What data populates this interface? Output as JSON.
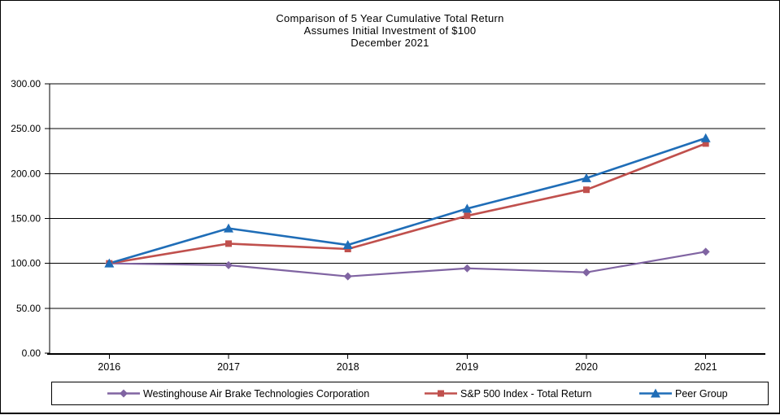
{
  "title": {
    "line1": "Comparison of 5 Year Cumulative Total Return",
    "line2": "Assumes Initial Investment of $100",
    "line3": "December 2021"
  },
  "chart_data": {
    "type": "line",
    "x": [
      2016,
      2017,
      2018,
      2019,
      2020,
      2021
    ],
    "xticks": [
      "2016",
      "2017",
      "2018",
      "2019",
      "2020",
      "2021"
    ],
    "yticks": [
      "0.00",
      "50.00",
      "100.00",
      "150.00",
      "200.00",
      "250.00",
      "300.00"
    ],
    "ylim": [
      0,
      300
    ],
    "ytick_step": 50,
    "grid": true,
    "legend_position": "bottom",
    "series": [
      {
        "name": "Westinghouse Air Brake Technologies Corporation",
        "color": "#8064A2",
        "marker": "diamond",
        "values": [
          100.0,
          98.0,
          85.5,
          94.5,
          90.0,
          113.0
        ]
      },
      {
        "name": "S&P 500 Index - Total Return",
        "color": "#C0504D",
        "marker": "square",
        "values": [
          100.0,
          122.0,
          116.0,
          153.0,
          182.0,
          233.5
        ]
      },
      {
        "name": "Peer Group",
        "color": "#1F6DB7",
        "marker": "triangle",
        "values": [
          100.0,
          139.0,
          120.5,
          161.0,
          195.0,
          239.5
        ]
      }
    ]
  }
}
